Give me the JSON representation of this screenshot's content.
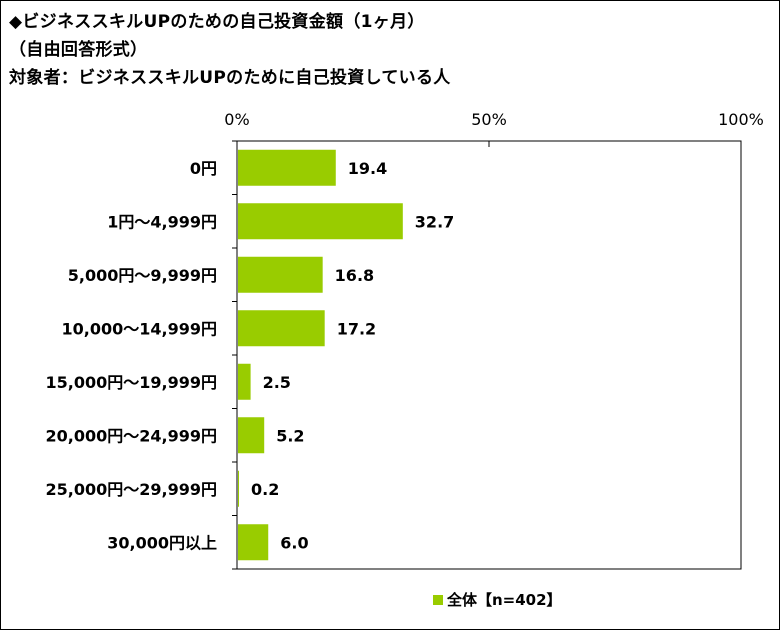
{
  "chart_data": {
    "type": "bar",
    "orientation": "horizontal",
    "title_lines": [
      "◆ビジネススキルUPのための自己投資金額（1ヶ月）",
      "（自由回答形式）",
      "対象者：ビジネススキルUPのために自己投資している人"
    ],
    "categories": [
      "0円",
      "1円～4,999円",
      "5,000円～9,999円",
      "10,000～14,999円",
      "15,000円～19,999円",
      "20,000円～24,999円",
      "25,000円～29,999円",
      "30,000円以上"
    ],
    "series": [
      {
        "name": "全体【n=402】",
        "values": [
          19.4,
          32.7,
          16.8,
          17.2,
          2.5,
          5.2,
          0.2,
          6.0
        ],
        "value_labels": [
          "19.4",
          "32.7",
          "16.8",
          "17.2",
          "2.5",
          "5.2",
          "0.2",
          "6.0"
        ],
        "color": "#99cc00"
      }
    ],
    "xlim": [
      0,
      100
    ],
    "ticks": [
      0,
      50,
      100
    ],
    "tick_labels": [
      "0%",
      "50%",
      "100%"
    ],
    "axis_position": "top",
    "grid": false,
    "legend_position": "bottom"
  }
}
